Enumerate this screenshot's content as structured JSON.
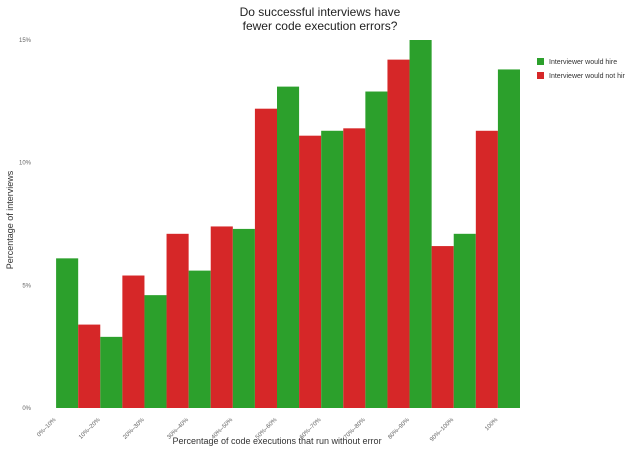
{
  "chart_data": {
    "type": "bar",
    "title_lines": [
      "Do successful interviews have",
      "fewer code execution errors?"
    ],
    "xlabel": "Percentage of code executions that run without error",
    "ylabel": "Percentage of interviews",
    "categories": [
      "0%–10%",
      "10%–20%",
      "20%–30%",
      "30%–40%",
      "40%–50%",
      "50%–60%",
      "60%–70%",
      "70%–80%",
      "80%–90%",
      "90%–100%",
      "100%"
    ],
    "series": [
      {
        "name": "Interviewer would not hir",
        "color": "#d62728",
        "values": [
          0,
          3.4,
          5.4,
          7.1,
          7.4,
          12.2,
          11.1,
          11.4,
          14.2,
          6.6,
          11.3
        ]
      },
      {
        "name": "Interviewer would hire",
        "color": "#2ca02c",
        "values": [
          6.1,
          2.9,
          4.6,
          5.6,
          7.3,
          13.1,
          11.3,
          12.9,
          15.0,
          7.1,
          13.8
        ]
      }
    ],
    "yticks": [
      "0%",
      "5%",
      "10%",
      "15%"
    ],
    "ylim": [
      0,
      15
    ],
    "legend_position": "top-right",
    "legend_order": [
      1,
      0
    ],
    "grid": false
  }
}
